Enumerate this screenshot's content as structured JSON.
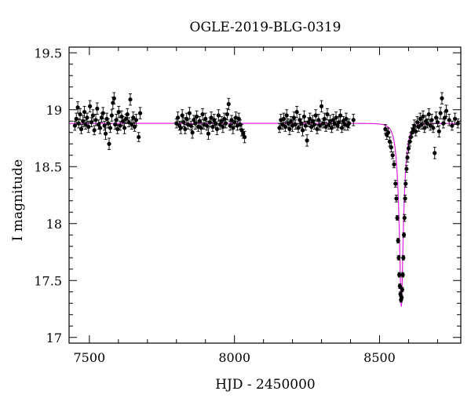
{
  "chart_data": {
    "type": "scatter",
    "title": "OGLE-2019-BLG-0319",
    "xlabel": "HJD - 2450000",
    "ylabel": "I magnitude",
    "xlim": [
      7430,
      8780
    ],
    "ylim": [
      19.55,
      16.95
    ],
    "y_inverted": true,
    "xticks": [
      7500,
      8000,
      8500
    ],
    "xtick_labels": [
      "7500",
      "8000",
      "8500"
    ],
    "yticks": [
      17,
      17.5,
      18,
      18.5,
      19,
      19.5
    ],
    "ytick_labels": [
      "17",
      "17.5",
      "18",
      "18.5",
      "19",
      "19.5"
    ],
    "grid": false,
    "legend": "none",
    "model": {
      "name": "",
      "color": "#e020e0",
      "baseline": 18.88,
      "t0": 8575,
      "peak": 17.27,
      "tE": 18
    },
    "series": [
      {
        "marker_color": "#000000",
        "points": [
          [
            7450,
            18.86,
            0.04
          ],
          [
            7455,
            18.92,
            0.05
          ],
          [
            7460,
            19.02,
            0.05
          ],
          [
            7463,
            18.88,
            0.04
          ],
          [
            7468,
            18.96,
            0.05
          ],
          [
            7472,
            18.83,
            0.04
          ],
          [
            7478,
            18.9,
            0.05
          ],
          [
            7483,
            18.98,
            0.05
          ],
          [
            7487,
            18.87,
            0.04
          ],
          [
            7492,
            18.93,
            0.04
          ],
          [
            7497,
            18.85,
            0.05
          ],
          [
            7502,
            19.03,
            0.05
          ],
          [
            7507,
            18.89,
            0.04
          ],
          [
            7512,
            18.95,
            0.05
          ],
          [
            7517,
            18.82,
            0.04
          ],
          [
            7522,
            18.91,
            0.05
          ],
          [
            7527,
            19.01,
            0.05
          ],
          [
            7532,
            18.87,
            0.04
          ],
          [
            7537,
            18.84,
            0.05
          ],
          [
            7542,
            18.93,
            0.04
          ],
          [
            7547,
            18.97,
            0.05
          ],
          [
            7552,
            18.86,
            0.04
          ],
          [
            7556,
            18.79,
            0.05
          ],
          [
            7560,
            18.92,
            0.05
          ],
          [
            7565,
            18.88,
            0.04
          ],
          [
            7568,
            18.7,
            0.05
          ],
          [
            7572,
            18.84,
            0.04
          ],
          [
            7577,
            18.95,
            0.05
          ],
          [
            7581,
            19.06,
            0.05
          ],
          [
            7585,
            19.1,
            0.05
          ],
          [
            7589,
            18.87,
            0.04
          ],
          [
            7593,
            18.91,
            0.05
          ],
          [
            7597,
            18.83,
            0.04
          ],
          [
            7601,
            18.98,
            0.05
          ],
          [
            7606,
            18.86,
            0.04
          ],
          [
            7611,
            18.94,
            0.05
          ],
          [
            7616,
            18.9,
            0.04
          ],
          [
            7621,
            18.84,
            0.05
          ],
          [
            7626,
            18.92,
            0.04
          ],
          [
            7631,
            18.96,
            0.05
          ],
          [
            7636,
            18.89,
            0.04
          ],
          [
            7641,
            19.09,
            0.05
          ],
          [
            7646,
            18.87,
            0.04
          ],
          [
            7651,
            18.93,
            0.05
          ],
          [
            7656,
            18.85,
            0.04
          ],
          [
            7661,
            18.91,
            0.05
          ],
          [
            7670,
            18.76,
            0.04
          ],
          [
            7675,
            18.97,
            0.05
          ],
          [
            7800,
            18.88,
            0.04
          ],
          [
            7805,
            18.93,
            0.05
          ],
          [
            7810,
            18.86,
            0.04
          ],
          [
            7815,
            18.84,
            0.05
          ],
          [
            7820,
            18.95,
            0.05
          ],
          [
            7825,
            18.89,
            0.04
          ],
          [
            7830,
            18.83,
            0.04
          ],
          [
            7835,
            18.92,
            0.05
          ],
          [
            7840,
            18.87,
            0.04
          ],
          [
            7845,
            18.97,
            0.05
          ],
          [
            7850,
            18.86,
            0.04
          ],
          [
            7855,
            18.8,
            0.05
          ],
          [
            7860,
            18.91,
            0.04
          ],
          [
            7865,
            18.88,
            0.05
          ],
          [
            7870,
            18.94,
            0.05
          ],
          [
            7875,
            18.85,
            0.04
          ],
          [
            7880,
            18.9,
            0.04
          ],
          [
            7885,
            18.84,
            0.05
          ],
          [
            7890,
            18.96,
            0.05
          ],
          [
            7895,
            18.87,
            0.04
          ],
          [
            7900,
            18.92,
            0.05
          ],
          [
            7905,
            18.86,
            0.04
          ],
          [
            7910,
            18.79,
            0.05
          ],
          [
            7915,
            18.89,
            0.04
          ],
          [
            7920,
            18.93,
            0.05
          ],
          [
            7925,
            18.85,
            0.04
          ],
          [
            7930,
            18.91,
            0.05
          ],
          [
            7935,
            18.88,
            0.04
          ],
          [
            7940,
            18.83,
            0.05
          ],
          [
            7945,
            18.95,
            0.05
          ],
          [
            7950,
            18.87,
            0.04
          ],
          [
            7955,
            18.9,
            0.04
          ],
          [
            7960,
            18.85,
            0.05
          ],
          [
            7965,
            18.92,
            0.05
          ],
          [
            7970,
            18.88,
            0.04
          ],
          [
            7975,
            18.96,
            0.05
          ],
          [
            7980,
            19.05,
            0.05
          ],
          [
            7985,
            18.86,
            0.04
          ],
          [
            7990,
            18.91,
            0.04
          ],
          [
            7995,
            18.84,
            0.05
          ],
          [
            8000,
            18.89,
            0.04
          ],
          [
            8005,
            18.93,
            0.05
          ],
          [
            8010,
            18.86,
            0.04
          ],
          [
            8015,
            18.92,
            0.05
          ],
          [
            8020,
            18.87,
            0.04
          ],
          [
            8025,
            18.82,
            0.05
          ],
          [
            8030,
            18.79,
            0.04
          ],
          [
            8035,
            18.76,
            0.05
          ],
          [
            8155,
            18.84,
            0.04
          ],
          [
            8160,
            18.91,
            0.05
          ],
          [
            8165,
            18.87,
            0.04
          ],
          [
            8170,
            18.92,
            0.05
          ],
          [
            8175,
            18.85,
            0.04
          ],
          [
            8180,
            18.95,
            0.05
          ],
          [
            8185,
            18.88,
            0.04
          ],
          [
            8190,
            18.83,
            0.05
          ],
          [
            8195,
            18.9,
            0.04
          ],
          [
            8200,
            18.86,
            0.05
          ],
          [
            8205,
            18.93,
            0.05
          ],
          [
            8210,
            18.87,
            0.04
          ],
          [
            8215,
            18.98,
            0.05
          ],
          [
            8220,
            18.84,
            0.04
          ],
          [
            8225,
            18.91,
            0.05
          ],
          [
            8230,
            18.88,
            0.04
          ],
          [
            8235,
            18.82,
            0.05
          ],
          [
            8240,
            18.94,
            0.05
          ],
          [
            8245,
            18.86,
            0.04
          ],
          [
            8250,
            18.73,
            0.05
          ],
          [
            8255,
            18.89,
            0.04
          ],
          [
            8260,
            18.92,
            0.05
          ],
          [
            8265,
            18.85,
            0.04
          ],
          [
            8270,
            18.9,
            0.05
          ],
          [
            8275,
            18.87,
            0.04
          ],
          [
            8280,
            18.95,
            0.05
          ],
          [
            8285,
            18.83,
            0.04
          ],
          [
            8290,
            18.91,
            0.05
          ],
          [
            8295,
            18.86,
            0.04
          ],
          [
            8300,
            19.03,
            0.05
          ],
          [
            8305,
            18.88,
            0.04
          ],
          [
            8310,
            18.92,
            0.05
          ],
          [
            8315,
            18.85,
            0.04
          ],
          [
            8320,
            18.96,
            0.05
          ],
          [
            8325,
            18.87,
            0.04
          ],
          [
            8330,
            18.9,
            0.05
          ],
          [
            8335,
            18.84,
            0.04
          ],
          [
            8340,
            18.91,
            0.05
          ],
          [
            8345,
            18.88,
            0.04
          ],
          [
            8350,
            18.93,
            0.05
          ],
          [
            8355,
            18.86,
            0.04
          ],
          [
            8360,
            18.89,
            0.05
          ],
          [
            8365,
            18.95,
            0.05
          ],
          [
            8370,
            18.84,
            0.04
          ],
          [
            8375,
            18.9,
            0.04
          ],
          [
            8380,
            18.87,
            0.05
          ],
          [
            8385,
            18.92,
            0.05
          ],
          [
            8390,
            18.86,
            0.04
          ],
          [
            8395,
            18.88,
            0.04
          ],
          [
            8410,
            18.91,
            0.05
          ],
          [
            8520,
            18.83,
            0.04
          ],
          [
            8525,
            18.78,
            0.04
          ],
          [
            8530,
            18.8,
            0.04
          ],
          [
            8535,
            18.72,
            0.04
          ],
          [
            8540,
            18.67,
            0.04
          ],
          [
            8545,
            18.6,
            0.03
          ],
          [
            8550,
            18.52,
            0.03
          ],
          [
            8555,
            18.35,
            0.03
          ],
          [
            8558,
            18.22,
            0.03
          ],
          [
            8561,
            18.05,
            0.02
          ],
          [
            8564,
            17.85,
            0.02
          ],
          [
            8566,
            17.7,
            0.02
          ],
          [
            8568,
            17.55,
            0.02
          ],
          [
            8570,
            17.45,
            0.02
          ],
          [
            8572,
            17.38,
            0.02
          ],
          [
            8574,
            17.33,
            0.02
          ],
          [
            8576,
            17.35,
            0.02
          ],
          [
            8578,
            17.42,
            0.02
          ],
          [
            8580,
            17.55,
            0.02
          ],
          [
            8582,
            17.7,
            0.02
          ],
          [
            8584,
            17.9,
            0.02
          ],
          [
            8586,
            18.05,
            0.03
          ],
          [
            8588,
            18.22,
            0.03
          ],
          [
            8590,
            18.35,
            0.03
          ],
          [
            8593,
            18.48,
            0.03
          ],
          [
            8596,
            18.58,
            0.04
          ],
          [
            8600,
            18.66,
            0.04
          ],
          [
            8604,
            18.72,
            0.04
          ],
          [
            8608,
            18.76,
            0.04
          ],
          [
            8612,
            18.8,
            0.04
          ],
          [
            8616,
            18.83,
            0.04
          ],
          [
            8620,
            18.86,
            0.05
          ],
          [
            8625,
            18.81,
            0.04
          ],
          [
            8630,
            18.89,
            0.05
          ],
          [
            8635,
            18.85,
            0.04
          ],
          [
            8640,
            18.92,
            0.05
          ],
          [
            8645,
            18.87,
            0.04
          ],
          [
            8650,
            18.94,
            0.05
          ],
          [
            8655,
            18.84,
            0.04
          ],
          [
            8660,
            18.9,
            0.05
          ],
          [
            8665,
            18.88,
            0.04
          ],
          [
            8670,
            18.96,
            0.05
          ],
          [
            8675,
            18.86,
            0.04
          ],
          [
            8680,
            18.91,
            0.05
          ],
          [
            8685,
            18.84,
            0.04
          ],
          [
            8690,
            18.62,
            0.05
          ],
          [
            8695,
            18.93,
            0.05
          ],
          [
            8700,
            18.89,
            0.04
          ],
          [
            8705,
            18.81,
            0.05
          ],
          [
            8710,
            18.97,
            0.05
          ],
          [
            8715,
            19.1,
            0.05
          ],
          [
            8720,
            18.88,
            0.04
          ],
          [
            8725,
            18.93,
            0.05
          ],
          [
            8730,
            18.99,
            0.05
          ],
          [
            8740,
            18.91,
            0.05
          ],
          [
            8750,
            18.86,
            0.04
          ],
          [
            8760,
            18.92,
            0.05
          ],
          [
            8770,
            18.88,
            0.04
          ]
        ]
      }
    ]
  }
}
